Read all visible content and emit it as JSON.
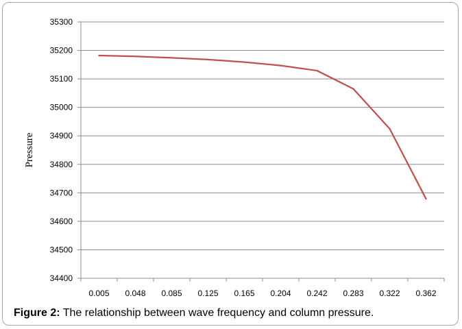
{
  "chart_data": {
    "type": "line",
    "title": "",
    "xlabel": "",
    "ylabel": "Pressure",
    "categories": [
      "0.005",
      "0.048",
      "0.085",
      "0.125",
      "0.165",
      "0.204",
      "0.242",
      "0.283",
      "0.322",
      "0.362"
    ],
    "series": [
      {
        "values": [
          35182,
          35179,
          35174,
          35168,
          35159,
          35147,
          35129,
          35065,
          34925,
          34679
        ]
      }
    ],
    "ylim": [
      34400,
      35300
    ],
    "yticks": [
      "34400",
      "34500",
      "34600",
      "34700",
      "34800",
      "34900",
      "35000",
      "35100",
      "35200",
      "35300"
    ],
    "grid": "horizontal",
    "legend": "none",
    "line_color": "#c0504d"
  },
  "caption": {
    "label": "Figure 2:",
    "text": " The relationship between wave frequency and column pressure."
  }
}
